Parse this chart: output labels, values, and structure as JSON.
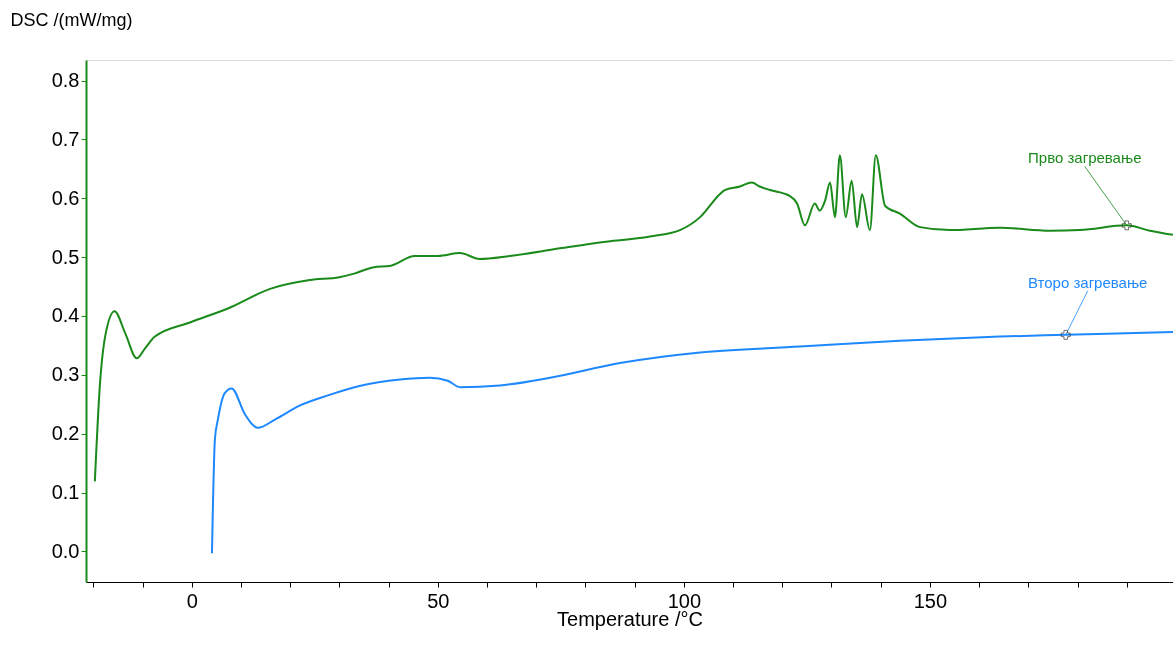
{
  "chart_data": {
    "type": "line",
    "xlabel": "Temperature /°C",
    "ylabel": "DSC /(mW/mg)",
    "xlim": [
      -21.5,
      199.4
    ],
    "ylim": [
      -0.052,
      0.835
    ],
    "xticks": [
      {
        "value": -20,
        "label": null
      },
      {
        "value": -10,
        "label": null
      },
      0,
      {
        "value": 10,
        "label": null
      },
      {
        "value": 20,
        "label": null
      },
      {
        "value": 30,
        "label": null
      },
      {
        "value": 40,
        "label": null
      },
      50,
      {
        "value": 60,
        "label": null
      },
      {
        "value": 70,
        "label": null
      },
      {
        "value": 80,
        "label": null
      },
      {
        "value": 90,
        "label": null
      },
      100,
      {
        "value": 110,
        "label": null
      },
      {
        "value": 120,
        "label": null
      },
      {
        "value": 130,
        "label": null
      },
      {
        "value": 140,
        "label": null
      },
      150,
      {
        "value": 160,
        "label": null
      },
      {
        "value": 170,
        "label": null
      },
      {
        "value": 180,
        "label": null
      },
      {
        "value": 190,
        "label": null
      }
    ],
    "yticks": [
      {
        "value": 0,
        "label": "0.0"
      },
      {
        "value": 0.1,
        "label": "0.1"
      },
      {
        "value": 0.2,
        "label": "0.2"
      },
      {
        "value": 0.3,
        "label": "0.3"
      },
      {
        "value": 0.4,
        "label": "0.4"
      },
      {
        "value": 0.5,
        "label": "0.5"
      },
      {
        "value": 0.6,
        "label": "0.6"
      },
      {
        "value": 0.7,
        "label": "0.7"
      },
      {
        "value": 0.8,
        "label": "0.8"
      }
    ],
    "grid": false,
    "marker": "none",
    "line_style": "solid",
    "series": [
      {
        "color": "#1a8a1a",
        "x": [
          -19.7,
          -18.7,
          -17.5,
          -15.7,
          -13.5,
          -11.2,
          -9.5,
          -7.5,
          -0.4,
          7.7,
          15.9,
          24.0,
          30.0,
          33.0,
          37.0,
          40.2,
          45.3,
          50.0,
          54.5,
          58.5,
          64.6,
          74.8,
          82.9,
          93.1,
          99.2,
          103.3,
          107.3,
          108.3,
          111.4,
          113.8,
          115.4,
          117.5,
          121.5,
          123.0,
          124.6,
          126.6,
          127.6,
          128.7,
          129.7,
          130.7,
          131.7,
          132.9,
          134.1,
          135.2,
          136.2,
          137.8,
          139.0,
          140.9,
          143.9,
          148.0,
          154.0,
          164.2,
          174.4,
          180.5,
          190.0,
          194.7,
          199.4
        ],
        "values": [
          0.119,
          0.28,
          0.37,
          0.408,
          0.37,
          0.328,
          0.345,
          0.365,
          0.389,
          0.414,
          0.446,
          0.461,
          0.466,
          0.472,
          0.483,
          0.485,
          0.502,
          0.502,
          0.507,
          0.497,
          0.502,
          0.515,
          0.525,
          0.535,
          0.546,
          0.568,
          0.607,
          0.614,
          0.62,
          0.627,
          0.62,
          0.614,
          0.604,
          0.591,
          0.554,
          0.591,
          0.579,
          0.596,
          0.627,
          0.568,
          0.673,
          0.568,
          0.63,
          0.551,
          0.607,
          0.546,
          0.673,
          0.587,
          0.574,
          0.551,
          0.546,
          0.55,
          0.545,
          0.546,
          0.554,
          0.545,
          0.538
        ]
      },
      {
        "color": "#1e88ff",
        "x": [
          4.1,
          4.7,
          5.3,
          6.7,
          8.1,
          10.8,
          13.4,
          16.9,
          22.0,
          28.0,
          34.1,
          42.3,
          48.4,
          52.0,
          54.5,
          62.6,
          72.8,
          87.0,
          103.3,
          123.6,
          143.9,
          164.2,
          177.6,
          199.4
        ],
        "values": [
          -0.003,
          0.191,
          0.224,
          0.269,
          0.277,
          0.233,
          0.21,
          0.224,
          0.248,
          0.266,
          0.281,
          0.292,
          0.295,
          0.29,
          0.279,
          0.282,
          0.295,
          0.32,
          0.338,
          0.348,
          0.358,
          0.365,
          0.368,
          0.373
        ]
      }
    ],
    "annotations": [
      {
        "text": "Прво загревање",
        "x": 190.0,
        "y": 0.554
      },
      {
        "text": "Второ загревање",
        "x": 177.6,
        "y": 0.368
      }
    ]
  }
}
